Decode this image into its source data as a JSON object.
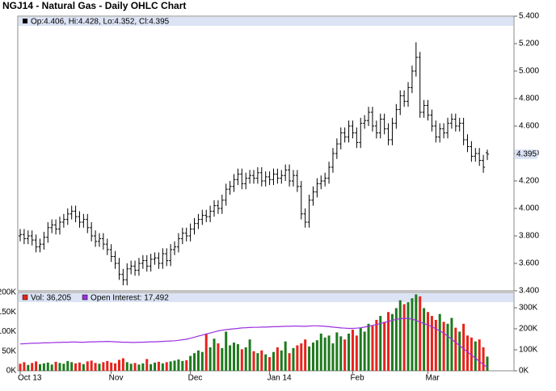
{
  "chart_data": [
    {
      "type": "ohlc",
      "title": "NGJ14 - Natural Gas - Daily OHLC Chart",
      "legend_text": "Op:4.406, Hi:4.428, Lo:4.352, Cl:4.395",
      "ylim": [
        3.4,
        5.4
      ],
      "yticks": [
        {
          "value": 3.4,
          "label": "3.400"
        },
        {
          "value": 3.6,
          "label": "3.600"
        },
        {
          "value": 3.8,
          "label": "3.800"
        },
        {
          "value": 4.0,
          "label": "4.000"
        },
        {
          "value": 4.2,
          "label": "4.200"
        },
        {
          "value": 4.4,
          "label": "4.400"
        },
        {
          "value": 4.6,
          "label": "4.600"
        },
        {
          "value": 4.8,
          "label": "4.800"
        },
        {
          "value": 5.0,
          "label": "5.000"
        },
        {
          "value": 5.2,
          "label": "5.200"
        },
        {
          "value": 5.4,
          "label": "5.400"
        }
      ],
      "last_price_tick": {
        "value": 4.395,
        "label": "4.395"
      },
      "grid": false,
      "color": "#000000",
      "series": [
        {
          "open": [
            3.8,
            3.81,
            3.78,
            3.8,
            3.77,
            3.72,
            3.74,
            3.79,
            3.86,
            3.88,
            3.85,
            3.9,
            3.92,
            3.96,
            3.98,
            3.94,
            3.9,
            3.92,
            3.86,
            3.8,
            3.76,
            3.78,
            3.74,
            3.7,
            3.65,
            3.6,
            3.52,
            3.48,
            3.56,
            3.58,
            3.55,
            3.6,
            3.62,
            3.58,
            3.63,
            3.64,
            3.6,
            3.67,
            3.62,
            3.7,
            3.72,
            3.78,
            3.82,
            3.8,
            3.85,
            3.89,
            3.92,
            3.95,
            3.94,
            3.98,
            4.02,
            4.0,
            4.06,
            4.14,
            4.16,
            4.21,
            4.25,
            4.18,
            4.22,
            4.24,
            4.22,
            4.26,
            4.2,
            4.23,
            4.21,
            4.25,
            4.22,
            4.24,
            4.28,
            4.2,
            4.24,
            4.16,
            3.96,
            3.9,
            4.06,
            4.12,
            4.18,
            4.2,
            4.22,
            4.3,
            4.4,
            4.47,
            4.55,
            4.52,
            4.6,
            4.55,
            4.48,
            4.62,
            4.64,
            4.7,
            4.6,
            4.55,
            4.65,
            4.58,
            4.5,
            4.62,
            4.72,
            4.82,
            4.78,
            4.88,
            5.0,
            5.1,
            4.7,
            4.75,
            4.68,
            4.6,
            4.52,
            4.58,
            4.55,
            4.62,
            4.65,
            4.6,
            4.62,
            4.5,
            4.45,
            4.38,
            4.4,
            4.35,
            4.406
          ],
          "high": [
            3.85,
            3.85,
            3.84,
            3.84,
            3.81,
            3.78,
            3.83,
            3.9,
            3.92,
            3.92,
            3.94,
            3.96,
            4.0,
            4.02,
            4.02,
            3.98,
            3.96,
            3.96,
            3.9,
            3.84,
            3.82,
            3.82,
            3.78,
            3.74,
            3.69,
            3.64,
            3.56,
            3.6,
            3.62,
            3.62,
            3.64,
            3.66,
            3.66,
            3.67,
            3.68,
            3.68,
            3.71,
            3.71,
            3.74,
            3.76,
            3.82,
            3.86,
            3.86,
            3.89,
            3.93,
            3.96,
            3.99,
            3.99,
            4.02,
            4.06,
            4.06,
            4.1,
            4.18,
            4.2,
            4.25,
            4.29,
            4.29,
            4.26,
            4.28,
            4.28,
            4.3,
            4.3,
            4.27,
            4.27,
            4.29,
            4.29,
            4.28,
            4.32,
            4.32,
            4.28,
            4.28,
            4.2,
            4.0,
            4.1,
            4.16,
            4.22,
            4.24,
            4.26,
            4.34,
            4.44,
            4.51,
            4.59,
            4.59,
            4.64,
            4.64,
            4.59,
            4.66,
            4.68,
            4.74,
            4.74,
            4.64,
            4.69,
            4.69,
            4.62,
            4.66,
            4.76,
            4.86,
            4.86,
            4.92,
            5.04,
            5.21,
            5.14,
            4.79,
            4.79,
            4.72,
            4.64,
            4.62,
            4.62,
            4.66,
            4.69,
            4.69,
            4.66,
            4.66,
            4.54,
            4.49,
            4.44,
            4.44,
            4.39,
            4.428
          ],
          "low": [
            3.76,
            3.74,
            3.74,
            3.73,
            3.68,
            3.68,
            3.7,
            3.75,
            3.82,
            3.81,
            3.81,
            3.86,
            3.88,
            3.92,
            3.9,
            3.86,
            3.86,
            3.82,
            3.76,
            3.72,
            3.72,
            3.7,
            3.66,
            3.61,
            3.56,
            3.48,
            3.44,
            3.44,
            3.52,
            3.51,
            3.51,
            3.56,
            3.54,
            3.54,
            3.59,
            3.56,
            3.56,
            3.58,
            3.58,
            3.66,
            3.68,
            3.74,
            3.76,
            3.76,
            3.81,
            3.85,
            3.88,
            3.9,
            3.9,
            3.94,
            3.96,
            3.96,
            4.02,
            4.1,
            4.12,
            4.17,
            4.14,
            4.14,
            4.18,
            4.18,
            4.18,
            4.16,
            4.16,
            4.17,
            4.17,
            4.18,
            4.18,
            4.2,
            4.16,
            4.16,
            4.12,
            3.92,
            3.86,
            3.86,
            4.02,
            4.08,
            4.14,
            4.16,
            4.18,
            4.26,
            4.36,
            4.43,
            4.48,
            4.48,
            4.51,
            4.44,
            4.44,
            4.58,
            4.6,
            4.56,
            4.51,
            4.51,
            4.54,
            4.46,
            4.46,
            4.58,
            4.68,
            4.74,
            4.74,
            4.84,
            4.96,
            4.66,
            4.66,
            4.64,
            4.56,
            4.48,
            4.48,
            4.51,
            4.51,
            4.58,
            4.56,
            4.56,
            4.46,
            4.41,
            4.34,
            4.34,
            4.31,
            4.26,
            4.352
          ],
          "close": [
            3.81,
            3.78,
            3.8,
            3.77,
            3.72,
            3.74,
            3.79,
            3.86,
            3.88,
            3.85,
            3.9,
            3.92,
            3.96,
            3.98,
            3.94,
            3.9,
            3.92,
            3.86,
            3.8,
            3.76,
            3.78,
            3.74,
            3.7,
            3.65,
            3.6,
            3.52,
            3.48,
            3.56,
            3.58,
            3.55,
            3.6,
            3.62,
            3.58,
            3.63,
            3.64,
            3.6,
            3.67,
            3.62,
            3.7,
            3.72,
            3.78,
            3.82,
            3.8,
            3.85,
            3.89,
            3.92,
            3.95,
            3.94,
            3.98,
            4.02,
            4.0,
            4.06,
            4.14,
            4.16,
            4.21,
            4.25,
            4.18,
            4.22,
            4.24,
            4.22,
            4.26,
            4.2,
            4.23,
            4.21,
            4.25,
            4.22,
            4.24,
            4.28,
            4.2,
            4.24,
            4.16,
            3.96,
            3.9,
            4.06,
            4.12,
            4.18,
            4.2,
            4.22,
            4.3,
            4.4,
            4.47,
            4.55,
            4.52,
            4.6,
            4.55,
            4.48,
            4.62,
            4.64,
            4.7,
            4.6,
            4.55,
            4.65,
            4.58,
            4.5,
            4.62,
            4.72,
            4.82,
            4.78,
            4.88,
            5.0,
            5.1,
            4.7,
            4.75,
            4.68,
            4.6,
            4.52,
            4.58,
            4.55,
            4.62,
            4.65,
            4.6,
            4.62,
            4.5,
            4.45,
            4.38,
            4.4,
            4.35,
            4.3,
            4.395
          ]
        }
      ]
    },
    {
      "type": "volume",
      "categories": [
        "Oct 13",
        null,
        null,
        null,
        null,
        null,
        null,
        null,
        null,
        null,
        null,
        null,
        null,
        null,
        null,
        null,
        null,
        null,
        null,
        null,
        null,
        null,
        null,
        "Nov",
        null,
        null,
        null,
        null,
        null,
        null,
        null,
        null,
        null,
        null,
        null,
        null,
        null,
        null,
        null,
        null,
        null,
        null,
        null,
        "Dec",
        null,
        null,
        null,
        null,
        null,
        null,
        null,
        null,
        null,
        null,
        null,
        null,
        null,
        null,
        null,
        null,
        null,
        null,
        null,
        "Jan 14",
        null,
        null,
        null,
        null,
        null,
        null,
        null,
        null,
        null,
        null,
        null,
        null,
        null,
        null,
        null,
        null,
        null,
        null,
        null,
        null,
        "Feb",
        null,
        null,
        null,
        null,
        null,
        null,
        null,
        null,
        null,
        null,
        null,
        null,
        null,
        null,
        null,
        null,
        null,
        null,
        "Mar",
        null,
        null,
        null,
        null,
        null,
        null,
        null,
        null,
        null,
        null,
        null,
        null,
        null,
        null,
        null
      ],
      "ylim": [
        0,
        200000
      ],
      "yticks": [
        {
          "value": 0,
          "label": "0K"
        },
        {
          "value": 50000,
          "label": "50K"
        },
        {
          "value": 100000,
          "label": "100K"
        },
        {
          "value": 150000,
          "label": "150K"
        },
        {
          "value": 200000,
          "label": "200K"
        }
      ],
      "y2lim": [
        0,
        373000
      ],
      "y2ticks": [
        {
          "value": 0,
          "label": "0K"
        },
        {
          "value": 100000,
          "label": "100K"
        },
        {
          "value": 200000,
          "label": "200K"
        },
        {
          "value": 300000,
          "label": "300K"
        }
      ],
      "up_color": "#1e7a1e",
      "series": [
        {
          "name": "Vol: 36,205",
          "color": "#e8231c",
          "values": [
            18000,
            22000,
            15000,
            20000,
            24000,
            17000,
            19000,
            21000,
            16000,
            23000,
            20000,
            18000,
            25000,
            22000,
            19000,
            21000,
            17000,
            24000,
            26000,
            20000,
            18000,
            22000,
            25000,
            21000,
            19000,
            28000,
            32000,
            22000,
            18000,
            20000,
            16000,
            19000,
            30000,
            17000,
            21000,
            23000,
            19000,
            22000,
            24000,
            26000,
            29000,
            25000,
            27000,
            38000,
            45000,
            52000,
            48000,
            95000,
            60000,
            82000,
            70000,
            58000,
            100000,
            65000,
            72000,
            68000,
            55000,
            60000,
            80000,
            50000,
            45000,
            52000,
            42000,
            35000,
            48000,
            60000,
            52000,
            75000,
            45000,
            58000,
            65000,
            70000,
            80000,
            62000,
            72000,
            78000,
            95000,
            85000,
            90000,
            70000,
            98000,
            88000,
            80000,
            95000,
            105000,
            90000,
            110000,
            100000,
            120000,
            115000,
            130000,
            140000,
            125000,
            150000,
            145000,
            160000,
            180000,
            170000,
            175000,
            185000,
            195000,
            190000,
            160000,
            150000,
            140000,
            130000,
            145000,
            125000,
            120000,
            135000,
            110000,
            100000,
            120000,
            90000,
            85000,
            75000,
            80000,
            60000,
            36205
          ]
        },
        {
          "name": "Open Interest: 17,492",
          "color": "#9b30e0",
          "axis": "y2",
          "values": [
            128000,
            129000,
            130000,
            131000,
            131000,
            132000,
            133000,
            133000,
            134000,
            135000,
            135000,
            136000,
            136000,
            137000,
            137000,
            136000,
            136000,
            137000,
            138000,
            138000,
            139000,
            139000,
            140000,
            139000,
            138000,
            137000,
            136000,
            136000,
            135000,
            135000,
            136000,
            136000,
            137000,
            138000,
            138000,
            139000,
            140000,
            141000,
            142000,
            143000,
            145000,
            148000,
            150000,
            155000,
            160000,
            165000,
            170000,
            175000,
            180000,
            185000,
            190000,
            193000,
            196000,
            198000,
            200000,
            202000,
            204000,
            205000,
            206000,
            207000,
            207000,
            208000,
            208000,
            209000,
            210000,
            210000,
            211000,
            212000,
            212000,
            213000,
            213000,
            212000,
            212000,
            213000,
            214000,
            214000,
            213000,
            212000,
            210000,
            208000,
            206000,
            204000,
            203000,
            202000,
            202000,
            203000,
            205000,
            208000,
            212000,
            216000,
            220000,
            225000,
            230000,
            235000,
            240000,
            245000,
            248000,
            250000,
            249000,
            246000,
            240000,
            232000,
            225000,
            218000,
            210000,
            200000,
            190000,
            180000,
            165000,
            150000,
            135000,
            120000,
            105000,
            90000,
            75000,
            60000,
            45000,
            30000,
            17492
          ]
        }
      ]
    }
  ]
}
